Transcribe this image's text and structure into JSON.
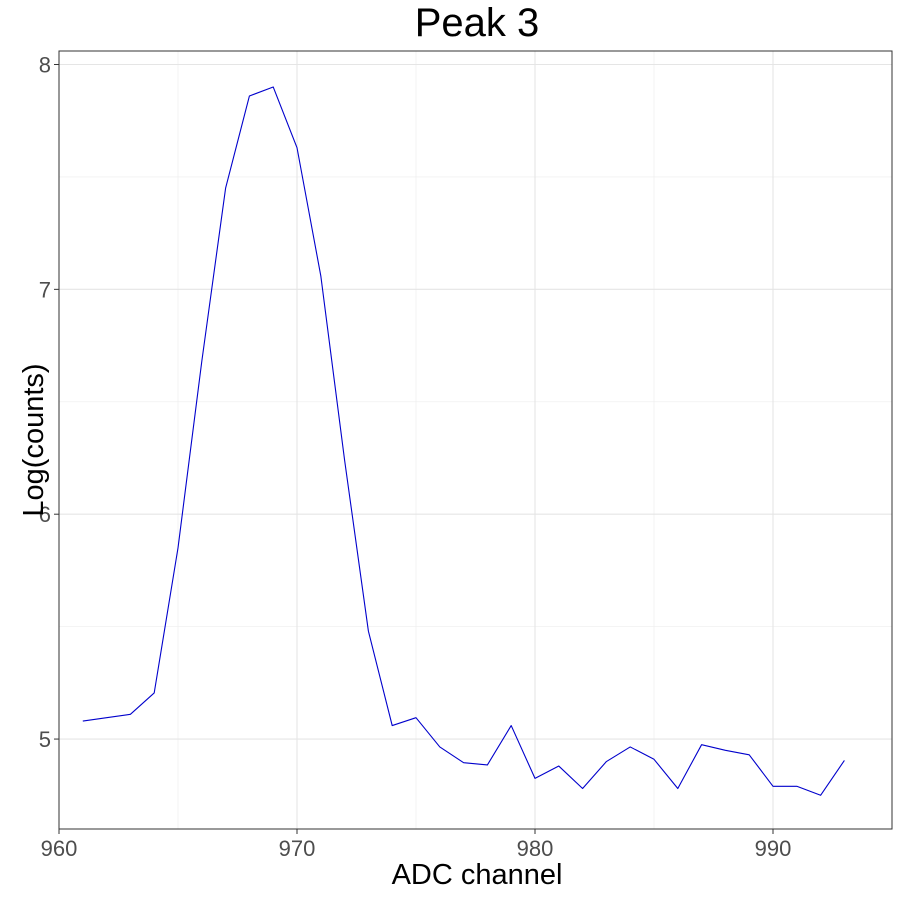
{
  "chart_data": {
    "type": "line",
    "title": "Peak 3",
    "xlabel": "ADC channel",
    "ylabel": "Log(counts)",
    "xlim": [
      960,
      995
    ],
    "ylim": [
      4.6,
      8.06
    ],
    "x_ticks": [
      960,
      970,
      980,
      990
    ],
    "y_ticks": [
      5,
      6,
      7,
      8
    ],
    "x_minor": [
      965,
      975,
      985,
      995
    ],
    "y_minor": [
      4.5,
      5.5,
      6.5,
      7.5
    ],
    "grid": true,
    "legend": "none",
    "line_color": "#0000cc",
    "x": [
      961,
      962,
      963,
      964,
      965,
      966,
      967,
      968,
      969,
      970,
      971,
      972,
      973,
      974,
      975,
      976,
      977,
      978,
      979,
      980,
      981,
      982,
      983,
      984,
      985,
      986,
      987,
      988,
      989,
      990,
      991,
      992,
      993
    ],
    "y": [
      5.08,
      5.095,
      5.11,
      5.205,
      5.85,
      6.68,
      7.45,
      7.86,
      7.9,
      7.63,
      7.06,
      6.24,
      5.48,
      5.06,
      5.095,
      4.965,
      4.895,
      4.885,
      5.06,
      4.825,
      4.88,
      4.78,
      4.9,
      4.965,
      4.91,
      4.78,
      4.975,
      4.95,
      4.93,
      4.79,
      4.79,
      4.75,
      4.905
    ]
  }
}
